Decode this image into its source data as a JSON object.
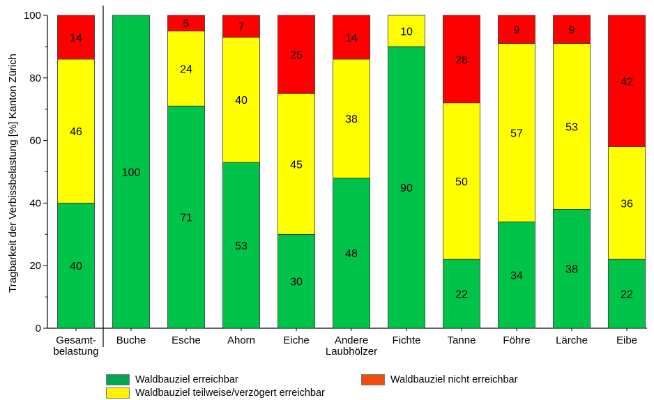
{
  "chart_data": {
    "type": "bar",
    "stacked": true,
    "title": "",
    "xlabel": "",
    "ylabel": "Tragbarkeit der Verbissbelastung [%] Kanton Zürich",
    "ylim": [
      0,
      100
    ],
    "yticks": [
      0,
      20,
      40,
      60,
      80,
      100
    ],
    "categories": [
      [
        "Gesamt-",
        "belastung"
      ],
      [
        "Buche"
      ],
      [
        "Esche"
      ],
      [
        "Ahorn"
      ],
      [
        "Eiche"
      ],
      [
        "Andere",
        "Laubhölzer"
      ],
      [
        "Fichte"
      ],
      [
        "Tanne"
      ],
      [
        "Föhre"
      ],
      [
        "Lärche"
      ],
      [
        "Eibe"
      ]
    ],
    "series": [
      {
        "name": "Waldbauziel erreichbar",
        "color": "#00c44a",
        "values": [
          40,
          100,
          71,
          53,
          30,
          48,
          90,
          22,
          34,
          38,
          22
        ]
      },
      {
        "name": "Waldbauziel teilweise/verzögert erreichbar",
        "color": "#ffff00",
        "values": [
          46,
          0,
          24,
          40,
          45,
          38,
          10,
          50,
          57,
          53,
          36
        ]
      },
      {
        "name": "Waldbauziel nicht erreichbar",
        "color": "#ff0000",
        "values": [
          14,
          0,
          5,
          7,
          25,
          14,
          0,
          28,
          9,
          9,
          42
        ]
      }
    ],
    "separator_after_category": 0,
    "grid": false,
    "legend_position": "bottom"
  },
  "legend": {
    "items": [
      {
        "label": "Waldbauziel erreichbar",
        "color": "#00a652"
      },
      {
        "label": "Waldbauziel nicht erreichbar",
        "color": "#f04e0e"
      },
      {
        "label": "Waldbauziel teilweise/verzögert erreichbar",
        "color": "#fff200"
      }
    ]
  }
}
